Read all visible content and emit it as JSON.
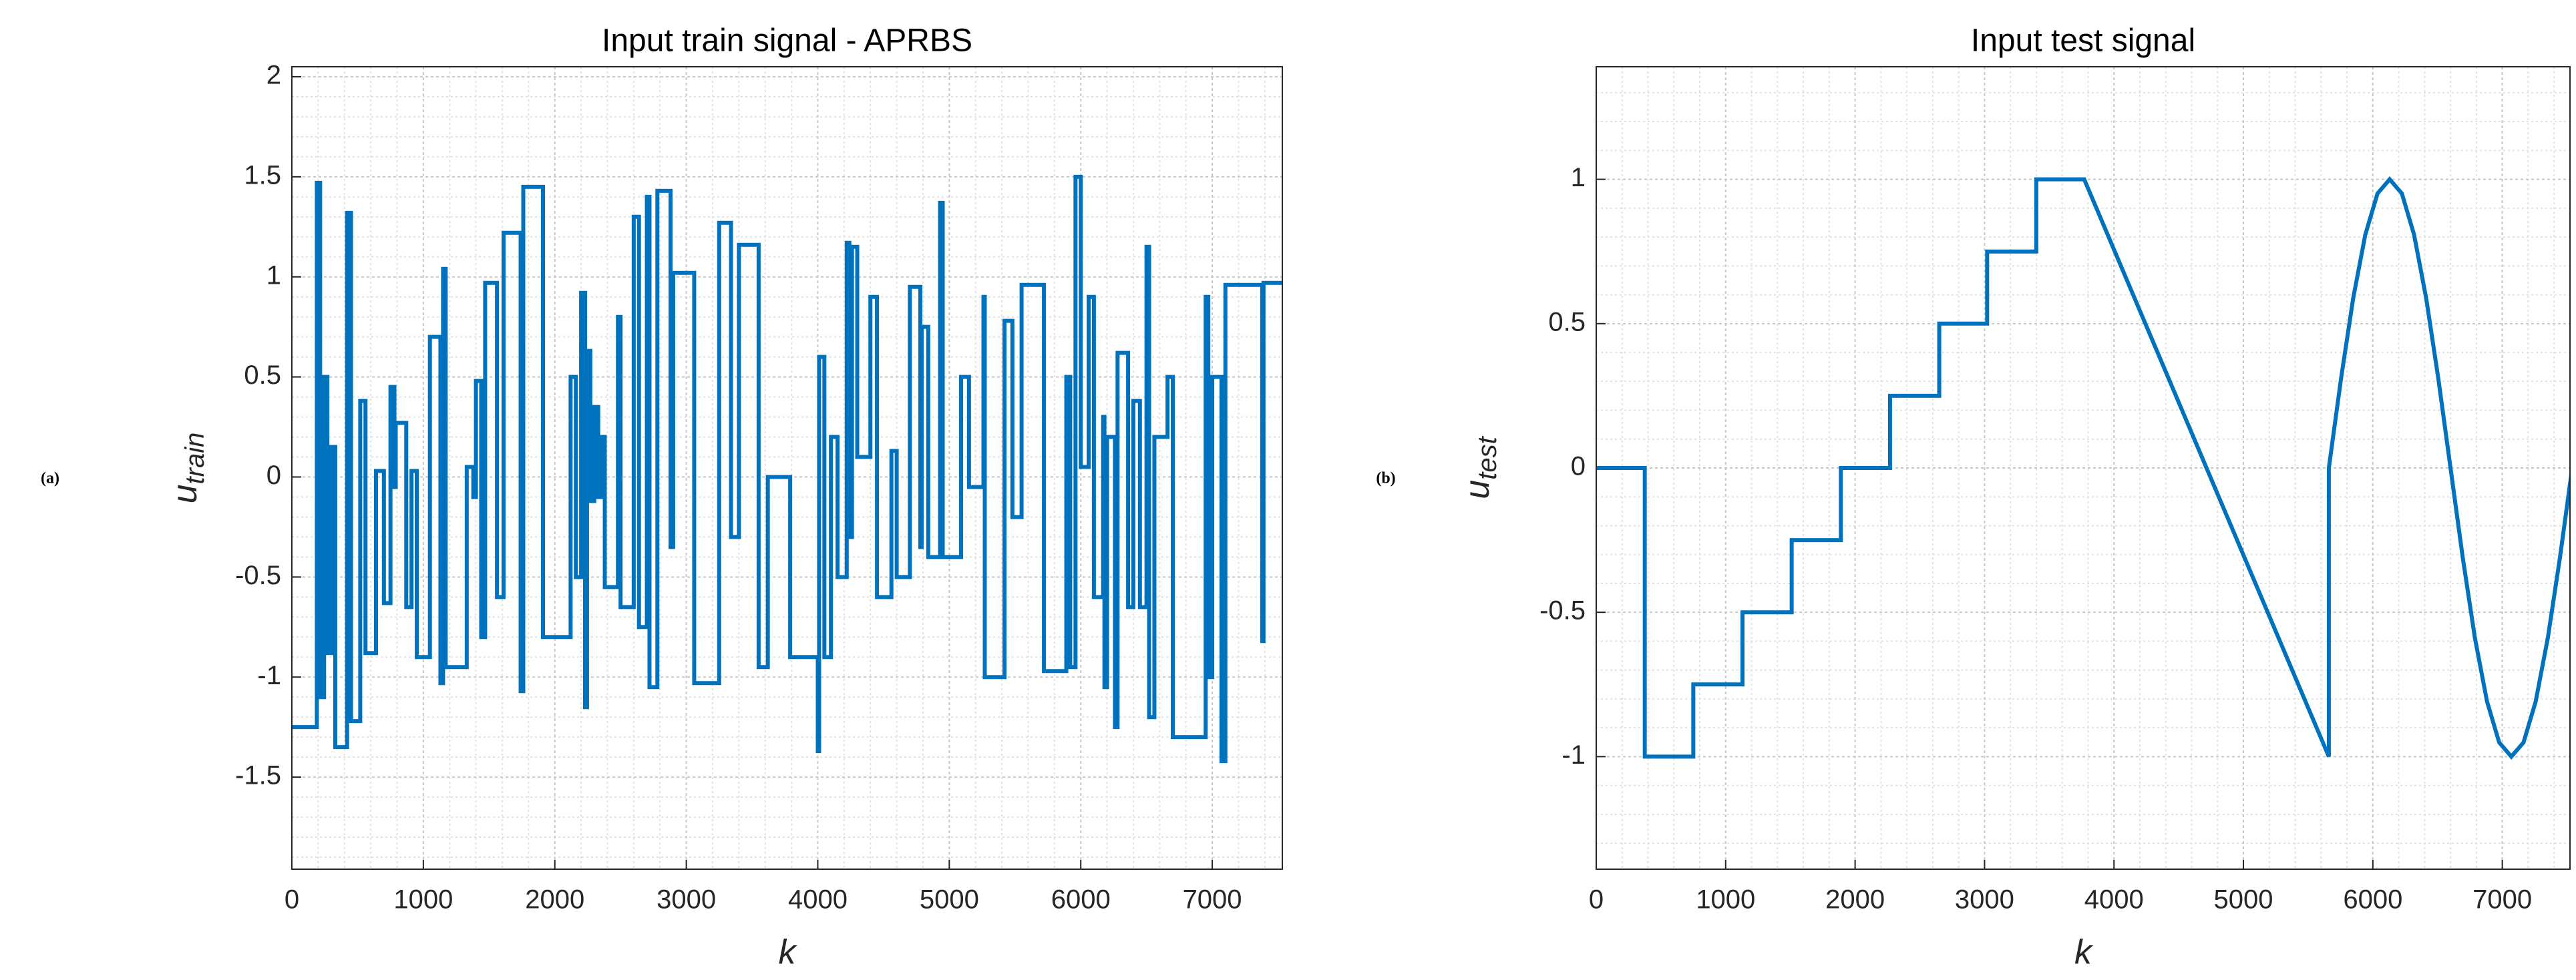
{
  "chart_data": [
    {
      "type": "line",
      "panel": "(a)",
      "title": "Input train signal - APRBS",
      "xlabel": "k",
      "ylabel": "u",
      "ylabel_subscript": "train",
      "xlim": [
        0,
        7533
      ],
      "ylim": [
        -1.96,
        2.05
      ],
      "xticks": [
        0,
        1000,
        2000,
        3000,
        4000,
        5000,
        6000,
        7000
      ],
      "yticks": [
        -1.5,
        -1,
        -0.5,
        0,
        0.5,
        1,
        1.5,
        2
      ],
      "grid": true,
      "minor_grid": true,
      "series": [
        {
          "color": "#0072bd",
          "x": [
            0,
            190,
            190,
            215,
            215,
            245,
            245,
            270,
            270,
            300,
            300,
            330,
            330,
            420,
            420,
            450,
            450,
            520,
            520,
            560,
            560,
            640,
            640,
            700,
            700,
            750,
            750,
            780,
            780,
            790,
            790,
            870,
            870,
            910,
            910,
            950,
            950,
            1050,
            1050,
            1130,
            1130,
            1150,
            1150,
            1170,
            1170,
            1330,
            1330,
            1380,
            1380,
            1400,
            1400,
            1440,
            1440,
            1470,
            1470,
            1560,
            1560,
            1610,
            1610,
            1740,
            1740,
            1760,
            1760,
            1910,
            1910,
            2120,
            2120,
            2160,
            2160,
            2200,
            2200,
            2230,
            2230,
            2245,
            2245,
            2270,
            2270,
            2300,
            2300,
            2330,
            2330,
            2350,
            2350,
            2380,
            2380,
            2480,
            2480,
            2500,
            2500,
            2600,
            2600,
            2640,
            2640,
            2700,
            2700,
            2720,
            2720,
            2780,
            2780,
            2880,
            2880,
            2900,
            2900,
            3060,
            3060,
            3250,
            3250,
            3340,
            3340,
            3400,
            3400,
            3550,
            3550,
            3620,
            3620,
            3790,
            3790,
            4000,
            4000,
            4010,
            4010,
            4050,
            4050,
            4100,
            4100,
            4150,
            4150,
            4220,
            4220,
            4240,
            4240,
            4260,
            4260,
            4300,
            4300,
            4400,
            4400,
            4450,
            4450,
            4560,
            4560,
            4600,
            4600,
            4700,
            4700,
            4780,
            4780,
            4790,
            4790,
            4840,
            4840,
            4930,
            4930,
            4950,
            4950,
            5090,
            5090,
            5150,
            5150,
            5260,
            5260,
            5270,
            5270,
            5420,
            5420,
            5480,
            5480,
            5550,
            5550,
            5720,
            5720,
            5890,
            5890,
            5920,
            5920,
            5960,
            5960,
            6000,
            6000,
            6060,
            6060,
            6100,
            6100,
            6170,
            6170,
            6180,
            6180,
            6200,
            6200,
            6260,
            6260,
            6280,
            6280,
            6360,
            6360,
            6400,
            6400,
            6450,
            6450,
            6500,
            6500,
            6520,
            6520,
            6560,
            6560,
            6660,
            6660,
            6700,
            6700,
            6950,
            6950,
            6970,
            6970,
            7000,
            7000,
            7070,
            7070,
            7100,
            7100,
            7380,
            7380,
            7390,
            7390,
            7533
          ],
          "values": [
            -1.25,
            -1.25,
            1.47,
            1.47,
            -1.1,
            -1.1,
            0.5,
            0.5,
            -0.88,
            -0.88,
            0.15,
            0.15,
            -1.35,
            -1.35,
            1.32,
            1.32,
            -1.22,
            -1.22,
            0.38,
            0.38,
            -0.88,
            -0.88,
            0.03,
            0.03,
            -0.63,
            -0.63,
            0.45,
            0.45,
            -0.05,
            -0.05,
            0.27,
            0.27,
            -0.65,
            -0.65,
            0.03,
            0.03,
            -0.9,
            -0.9,
            0.7,
            0.7,
            -1.03,
            -1.03,
            1.04,
            1.04,
            -0.95,
            -0.95,
            0.05,
            0.05,
            -0.1,
            -0.1,
            0.48,
            0.48,
            -0.8,
            -0.8,
            0.97,
            0.97,
            -0.6,
            -0.6,
            1.22,
            1.22,
            -1.07,
            -1.07,
            1.45,
            1.45,
            -0.8,
            -0.8,
            0.5,
            0.5,
            -0.5,
            -0.5,
            0.92,
            0.92,
            -1.15,
            -1.15,
            0.63,
            0.63,
            -0.12,
            -0.12,
            0.35,
            0.35,
            -0.1,
            -0.1,
            0.2,
            0.2,
            -0.55,
            -0.55,
            0.8,
            0.8,
            -0.65,
            -0.65,
            1.3,
            1.3,
            -0.75,
            -0.75,
            1.4,
            1.4,
            -1.05,
            -1.05,
            1.43,
            1.43,
            -0.35,
            -0.35,
            1.02,
            1.02,
            -1.03,
            -1.03,
            1.27,
            1.27,
            -0.3,
            -0.3,
            1.16,
            1.16,
            -0.95,
            -0.95,
            0,
            0,
            -0.9,
            -0.9,
            -1.37,
            -1.37,
            0.6,
            0.6,
            -0.9,
            -0.9,
            0.2,
            0.2,
            -0.5,
            -0.5,
            1.17,
            1.17,
            -0.3,
            -0.3,
            1.15,
            1.15,
            0.1,
            0.1,
            0.9,
            0.9,
            -0.6,
            -0.6,
            0.13,
            0.13,
            -0.5,
            -0.5,
            0.95,
            0.95,
            -0.35,
            -0.35,
            0.75,
            0.75,
            -0.4,
            -0.4,
            1.37,
            1.37,
            -0.4,
            -0.4,
            0.5,
            0.5,
            -0.05,
            -0.05,
            0.9,
            0.9,
            -1.0,
            -1.0,
            0.78,
            0.78,
            -0.2,
            -0.2,
            0.96,
            0.96,
            -0.97,
            -0.97,
            0.5,
            0.5,
            -0.95,
            -0.95,
            1.5,
            1.5,
            0.05,
            0.05,
            0.9,
            0.9,
            -0.6,
            -0.6,
            0.3,
            0.3,
            -1.05,
            -1.05,
            0.2,
            0.2,
            -1.25,
            -1.25,
            0.62,
            0.62,
            -0.65,
            -0.65,
            0.38,
            0.38,
            -0.65,
            -0.65,
            1.15,
            1.15,
            -1.2,
            -1.2,
            0.2,
            0.2,
            0.5,
            0.5,
            -1.3,
            -1.3,
            0.9,
            0.9,
            -1.0,
            -1.0,
            0.5,
            0.5,
            -1.42,
            -1.42,
            0.96,
            0.96,
            -0.82,
            -0.82,
            0.97,
            0.97
          ]
        }
      ]
    },
    {
      "type": "line",
      "panel": "(b)",
      "title": "Input test signal",
      "xlabel": "k",
      "ylabel": "u",
      "ylabel_subscript": "test",
      "xlim": [
        0,
        7523
      ],
      "ylim": [
        -1.39,
        1.39
      ],
      "xticks": [
        0,
        1000,
        2000,
        3000,
        4000,
        5000,
        6000,
        7000
      ],
      "yticks": [
        -1,
        -0.5,
        0,
        0.5,
        1
      ],
      "grid": true,
      "minor_grid": true,
      "series": [
        {
          "color": "#0072bd",
          "x": [
            0,
            375,
            375,
            750,
            750,
            1130,
            1130,
            1510,
            1510,
            1890,
            1890,
            2270,
            2270,
            2650,
            2650,
            3020,
            3020,
            3400,
            3400,
            3770,
            5660,
            5660,
            5754,
            5848,
            5942,
            6036,
            6130,
            6224,
            6318,
            6412,
            6506,
            6600,
            6694,
            6788,
            6882,
            6976,
            7070,
            7164,
            7258,
            7352,
            7446,
            7540
          ],
          "values": [
            0,
            0,
            -1,
            -1,
            -0.75,
            -0.75,
            -0.5,
            -0.5,
            -0.25,
            -0.25,
            0,
            0,
            0.25,
            0.25,
            0.5,
            0.5,
            0.75,
            0.75,
            1,
            1,
            -1,
            0,
            0.309,
            0.588,
            0.809,
            0.951,
            1,
            0.951,
            0.809,
            0.588,
            0.309,
            0,
            -0.309,
            -0.588,
            -0.809,
            -0.951,
            -1,
            -0.951,
            -0.809,
            -0.588,
            -0.309,
            0
          ]
        }
      ]
    }
  ]
}
